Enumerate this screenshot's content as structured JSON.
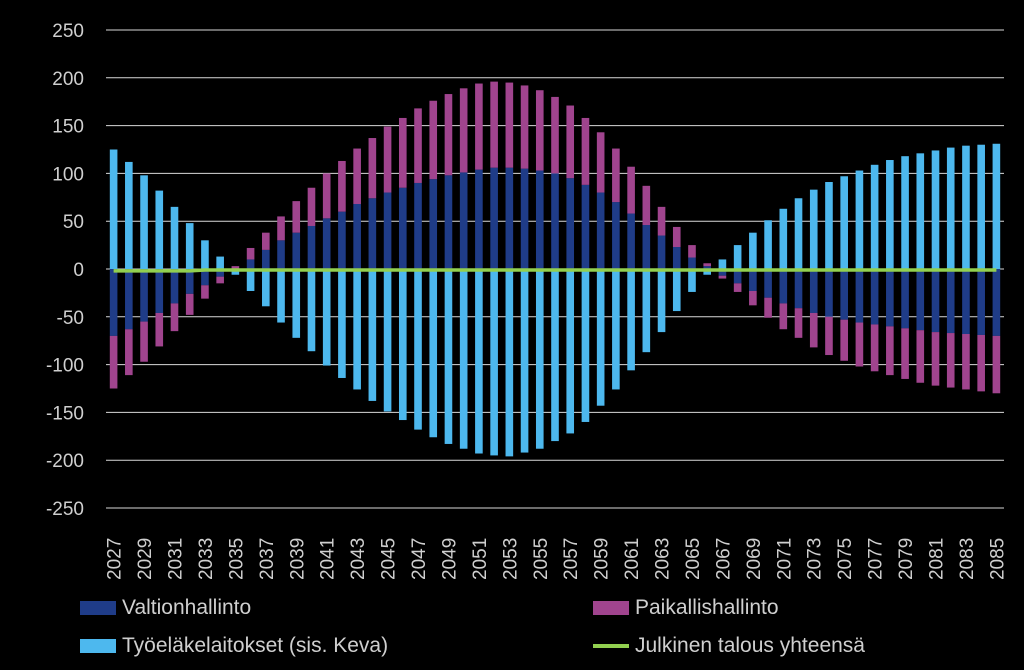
{
  "chart_data": {
    "type": "bar",
    "stacked": true,
    "title": "",
    "xlabel": "",
    "ylabel": "",
    "ylim": [
      -250,
      250
    ],
    "yticks": [
      250,
      200,
      150,
      100,
      50,
      0,
      -50,
      -100,
      -150,
      -200,
      -250
    ],
    "grid": true,
    "legend_position": "bottom",
    "x": [
      2027,
      2028,
      2029,
      2030,
      2031,
      2032,
      2033,
      2034,
      2035,
      2036,
      2037,
      2038,
      2039,
      2040,
      2041,
      2042,
      2043,
      2044,
      2045,
      2046,
      2047,
      2048,
      2049,
      2050,
      2051,
      2052,
      2053,
      2054,
      2055,
      2056,
      2057,
      2058,
      2059,
      2060,
      2061,
      2062,
      2063,
      2064,
      2065,
      2066,
      2067,
      2068,
      2069,
      2070,
      2071,
      2072,
      2073,
      2074,
      2075,
      2076,
      2077,
      2078,
      2079,
      2080,
      2081,
      2082,
      2083,
      2084,
      2085
    ],
    "x_tick_labels": [
      "2027",
      "2029",
      "2031",
      "2033",
      "2035",
      "2037",
      "2039",
      "2041",
      "2043",
      "2045",
      "2047",
      "2049",
      "2051",
      "2053",
      "2055",
      "2057",
      "2059",
      "2061",
      "2063",
      "2065",
      "2067",
      "2069",
      "2071",
      "2073",
      "2075",
      "2077",
      "2079",
      "2081",
      "2083",
      "2085"
    ],
    "series": [
      {
        "name": "Valtionhallinto",
        "color": "#1f3c88",
        "values": [
          -70,
          -63,
          -55,
          -46,
          -36,
          -26,
          -17,
          -8,
          0,
          10,
          20,
          30,
          38,
          45,
          53,
          60,
          68,
          74,
          80,
          85,
          90,
          94,
          98,
          101,
          104,
          106,
          106,
          105,
          103,
          100,
          95,
          88,
          80,
          70,
          58,
          46,
          35,
          23,
          12,
          3,
          -7,
          -15,
          -23,
          -30,
          -36,
          -41,
          -46,
          -50,
          -53,
          -56,
          -58,
          -60,
          -62,
          -64,
          -66,
          -67,
          -68,
          -69,
          -70
        ]
      },
      {
        "name": "Paikallishallinto",
        "color": "#a0448e",
        "values": [
          -55,
          -48,
          -42,
          -35,
          -29,
          -22,
          -14,
          -7,
          3,
          12,
          18,
          25,
          33,
          40,
          47,
          53,
          58,
          63,
          69,
          73,
          78,
          82,
          85,
          88,
          90,
          90,
          89,
          87,
          84,
          80,
          76,
          70,
          63,
          56,
          49,
          41,
          30,
          21,
          13,
          3,
          -3,
          -9,
          -15,
          -21,
          -27,
          -31,
          -36,
          -40,
          -43,
          -46,
          -49,
          -51,
          -53,
          -55,
          -56,
          -57,
          -58,
          -59,
          -60
        ]
      },
      {
        "name": "Työeläkelaitokset (sis. Keva)",
        "color": "#4db8ee",
        "values": [
          125,
          112,
          98,
          82,
          65,
          48,
          30,
          13,
          -6,
          -23,
          -39,
          -56,
          -72,
          -86,
          -101,
          -114,
          -126,
          -138,
          -149,
          -158,
          -168,
          -176,
          -183,
          -188,
          -193,
          -195,
          -196,
          -192,
          -188,
          -180,
          -172,
          -160,
          -143,
          -126,
          -106,
          -87,
          -66,
          -44,
          -24,
          -6,
          10,
          25,
          38,
          51,
          63,
          74,
          83,
          91,
          97,
          103,
          109,
          114,
          118,
          121,
          124,
          127,
          129,
          130,
          131
        ]
      },
      {
        "name": "Julkinen talous yhteensä",
        "color": "#92d050",
        "kind": "line",
        "values": [
          -2,
          -2,
          -2,
          -2,
          -2,
          -2,
          -1,
          -1,
          -1,
          -1,
          -1,
          -1,
          -1,
          -1,
          -1,
          -1,
          -1,
          -1,
          -1,
          -1,
          -1,
          -1,
          -1,
          -1,
          -1,
          -1,
          -1,
          -1,
          -1,
          -1,
          -1,
          -1,
          -1,
          -1,
          -1,
          -1,
          -1,
          -1,
          -1,
          -1,
          -1,
          -1,
          -1,
          -1,
          -1,
          -1,
          -1,
          -1,
          -1,
          -1,
          -1,
          -1,
          -1,
          -1,
          -1,
          -1,
          -1,
          -1,
          -1
        ]
      }
    ]
  },
  "legend": {
    "items": [
      {
        "label": "Valtionhallinto"
      },
      {
        "label": "Paikallishallinto"
      },
      {
        "label": "Työeläkelaitokset (sis. Keva)"
      },
      {
        "label": "Julkinen talous yhteensä"
      }
    ]
  }
}
